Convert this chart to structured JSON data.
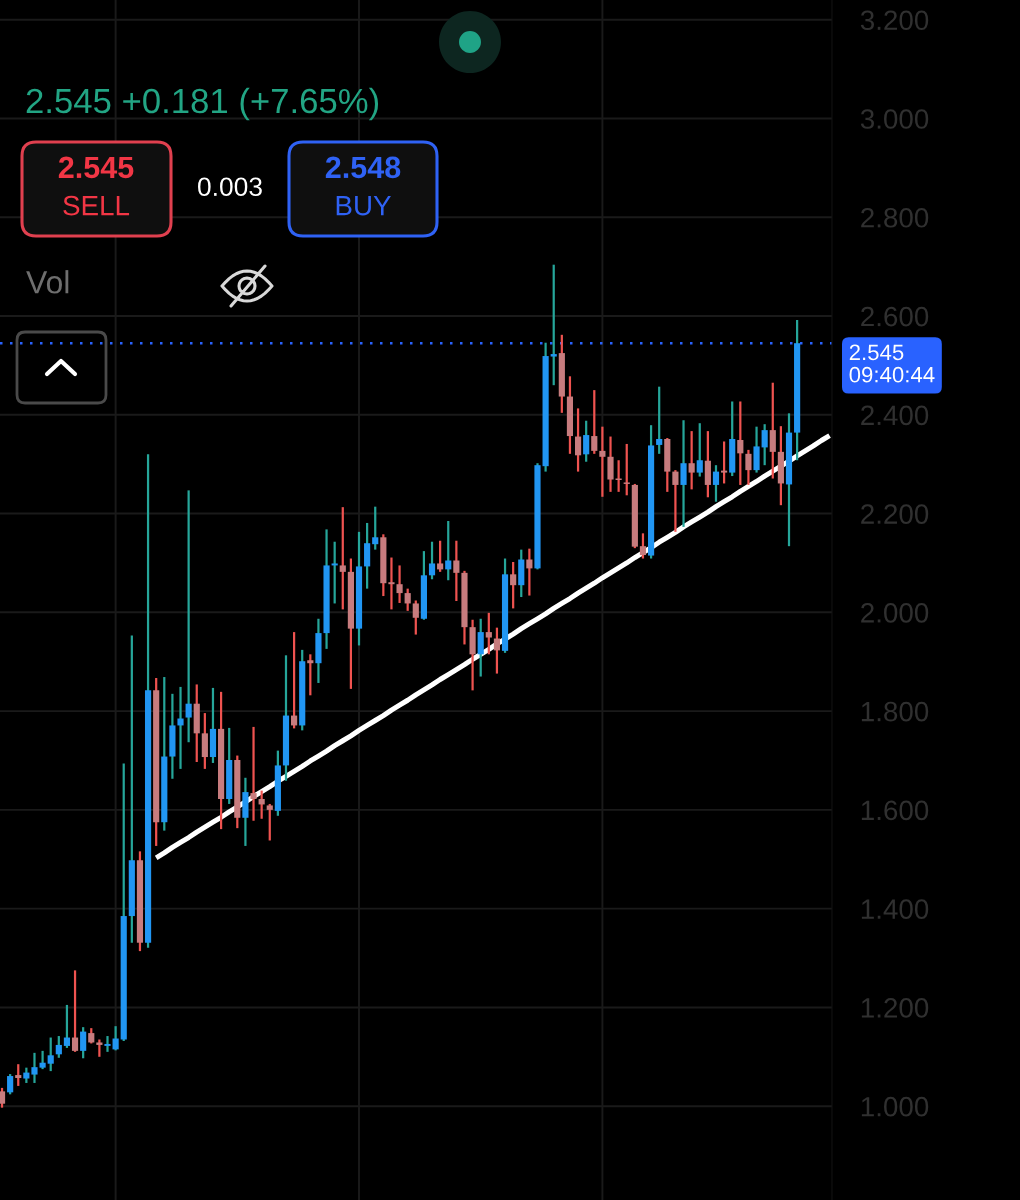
{
  "chart_data": {
    "type": "candlestick",
    "categories": [
      null,
      null,
      null,
      null,
      null,
      null,
      null,
      null,
      null,
      null,
      null,
      null,
      null,
      null,
      null,
      null,
      null,
      null,
      null,
      null,
      null,
      null,
      null,
      null,
      null,
      null,
      null,
      null,
      null,
      null,
      null,
      null,
      null,
      null,
      null,
      null,
      null,
      null,
      null,
      null,
      null,
      null,
      null,
      null,
      null,
      null,
      null,
      null,
      null,
      null,
      null,
      null,
      null,
      null,
      null,
      null,
      null,
      null,
      null,
      null,
      null,
      null,
      null,
      null,
      null,
      null,
      null,
      null,
      null,
      null,
      null,
      null,
      null,
      null,
      null,
      null,
      null,
      null,
      null,
      null,
      null,
      null,
      null,
      null,
      null,
      null,
      null,
      null,
      null,
      null,
      null,
      null,
      null,
      null,
      null,
      null,
      null,
      null,
      null,
      null,
      null,
      null,
      null
    ],
    "ohlc": [
      [
        1.03,
        1.037,
        0.997,
        1.005
      ],
      [
        1.028,
        1.065,
        1.024,
        1.061
      ],
      [
        1.063,
        1.085,
        1.041,
        1.057
      ],
      [
        1.056,
        1.078,
        1.047,
        1.068
      ],
      [
        1.064,
        1.108,
        1.047,
        1.079
      ],
      [
        1.078,
        1.112,
        1.075,
        1.088
      ],
      [
        1.086,
        1.139,
        1.071,
        1.103
      ],
      [
        1.105,
        1.142,
        1.098,
        1.124
      ],
      [
        1.122,
        1.205,
        1.118,
        1.139
      ],
      [
        1.139,
        1.275,
        1.11,
        1.112
      ],
      [
        1.112,
        1.16,
        1.097,
        1.151
      ],
      [
        1.148,
        1.158,
        1.127,
        1.129
      ],
      [
        1.129,
        1.135,
        1.1,
        1.124
      ],
      [
        1.122,
        1.142,
        1.11,
        1.126
      ],
      [
        1.115,
        1.162,
        1.113,
        1.137
      ],
      [
        1.135,
        1.694,
        1.132,
        1.385
      ],
      [
        1.385,
        1.953,
        1.331,
        1.498
      ],
      [
        1.498,
        1.516,
        1.314,
        1.331
      ],
      [
        1.331,
        2.32,
        1.321,
        1.842
      ],
      [
        1.842,
        1.867,
        1.527,
        1.575
      ],
      [
        1.575,
        1.869,
        1.558,
        1.708
      ],
      [
        1.708,
        1.835,
        1.663,
        1.771
      ],
      [
        1.771,
        1.849,
        1.683,
        1.785
      ],
      [
        1.787,
        2.247,
        1.737,
        1.815
      ],
      [
        1.815,
        1.854,
        1.697,
        1.755
      ],
      [
        1.755,
        1.796,
        1.683,
        1.707
      ],
      [
        1.707,
        1.847,
        1.695,
        1.764
      ],
      [
        1.764,
        1.839,
        1.561,
        1.622
      ],
      [
        1.622,
        1.766,
        1.612,
        1.701
      ],
      [
        1.701,
        1.71,
        1.563,
        1.584
      ],
      [
        1.584,
        1.665,
        1.527,
        1.636
      ],
      [
        1.634,
        1.768,
        1.578,
        1.622
      ],
      [
        1.622,
        1.639,
        1.582,
        1.611
      ],
      [
        1.609,
        1.612,
        1.538,
        1.6
      ],
      [
        1.598,
        1.72,
        1.588,
        1.69
      ],
      [
        1.69,
        1.913,
        1.659,
        1.791
      ],
      [
        1.791,
        1.96,
        1.765,
        1.771
      ],
      [
        1.771,
        1.924,
        1.761,
        1.901
      ],
      [
        1.903,
        1.915,
        1.832,
        1.897
      ],
      [
        1.897,
        1.987,
        1.857,
        1.958
      ],
      [
        1.958,
        2.168,
        1.926,
        2.095
      ],
      [
        2.095,
        2.143,
        2.018,
        2.099
      ],
      [
        2.095,
        2.213,
        2.006,
        2.082
      ],
      [
        2.082,
        2.109,
        1.845,
        1.967
      ],
      [
        1.967,
        2.163,
        1.933,
        2.093
      ],
      [
        2.093,
        2.181,
        2.048,
        2.14
      ],
      [
        2.138,
        2.214,
        2.127,
        2.152
      ],
      [
        2.152,
        2.158,
        2.033,
        2.059
      ],
      [
        2.061,
        2.111,
        2.006,
        2.057
      ],
      [
        2.057,
        2.095,
        2.019,
        2.039
      ],
      [
        2.039,
        2.048,
        2.003,
        2.018
      ],
      [
        2.018,
        2.024,
        1.955,
        1.989
      ],
      [
        1.987,
        2.124,
        1.985,
        2.075
      ],
      [
        2.075,
        2.143,
        2.067,
        2.099
      ],
      [
        2.099,
        2.145,
        2.082,
        2.087
      ],
      [
        2.087,
        2.185,
        2.065,
        2.105
      ],
      [
        2.105,
        2.145,
        2.023,
        2.08
      ],
      [
        2.08,
        2.084,
        1.935,
        1.97
      ],
      [
        1.97,
        1.985,
        1.842,
        1.915
      ],
      [
        1.915,
        1.987,
        1.87,
        1.96
      ],
      [
        1.96,
        1.999,
        1.915,
        1.949
      ],
      [
        1.947,
        1.969,
        1.876,
        1.923
      ],
      [
        1.922,
        2.109,
        1.918,
        2.077
      ],
      [
        2.077,
        2.102,
        2.008,
        2.055
      ],
      [
        2.055,
        2.127,
        2.031,
        2.107
      ],
      [
        2.107,
        2.129,
        2.034,
        2.089
      ],
      [
        2.089,
        2.302,
        2.087,
        2.298
      ],
      [
        2.296,
        2.546,
        2.285,
        2.519
      ],
      [
        2.518,
        2.704,
        2.46,
        2.523
      ],
      [
        2.525,
        2.562,
        2.404,
        2.437
      ],
      [
        2.437,
        2.478,
        2.321,
        2.357
      ],
      [
        2.356,
        2.413,
        2.285,
        2.318
      ],
      [
        2.32,
        2.388,
        2.305,
        2.359
      ],
      [
        2.357,
        2.45,
        2.321,
        2.327
      ],
      [
        2.327,
        2.376,
        2.234,
        2.315
      ],
      [
        2.315,
        2.356,
        2.244,
        2.269
      ],
      [
        2.271,
        2.308,
        2.244,
        2.268
      ],
      [
        2.263,
        2.341,
        2.237,
        2.26
      ],
      [
        2.258,
        2.26,
        2.13,
        2.133
      ],
      [
        2.134,
        2.16,
        2.109,
        2.116
      ],
      [
        2.115,
        2.379,
        2.109,
        2.338
      ],
      [
        2.339,
        2.457,
        2.321,
        2.351
      ],
      [
        2.351,
        2.353,
        2.244,
        2.285
      ],
      [
        2.285,
        2.288,
        2.163,
        2.258
      ],
      [
        2.258,
        2.389,
        2.173,
        2.302
      ],
      [
        2.302,
        2.367,
        2.249,
        2.283
      ],
      [
        2.283,
        2.383,
        2.275,
        2.308
      ],
      [
        2.307,
        2.367,
        2.233,
        2.258
      ],
      [
        2.258,
        2.298,
        2.224,
        2.285
      ],
      [
        2.287,
        2.346,
        2.261,
        2.283
      ],
      [
        2.283,
        2.427,
        2.276,
        2.351
      ],
      [
        2.349,
        2.427,
        2.258,
        2.322
      ],
      [
        2.321,
        2.329,
        2.258,
        2.288
      ],
      [
        2.288,
        2.376,
        2.283,
        2.336
      ],
      [
        2.334,
        2.381,
        2.298,
        2.369
      ],
      [
        2.369,
        2.465,
        2.271,
        2.325
      ],
      [
        2.325,
        2.377,
        2.217,
        2.261
      ],
      [
        2.259,
        2.403,
        2.134,
        2.364
      ],
      [
        2.364,
        2.592,
        2.308,
        2.545
      ],
      null,
      null,
      null,
      null
    ],
    "colors": [
      "#c77c7e",
      "#2196f3",
      "#c77c7e",
      "#2196f3",
      "#2196f3",
      "#2196f3",
      "#2196f3",
      "#2196f3",
      "#2196f3",
      "#c77c7e",
      "#2196f3",
      "#c77c7e",
      "#c77c7e",
      "#2196f3",
      "#2196f3",
      "#2196f3",
      "#2196f3",
      "#c77c7e",
      "#2196f3",
      "#c77c7e",
      "#2196f3",
      "#2196f3",
      "#2196f3",
      "#2196f3",
      "#c77c7e",
      "#c77c7e",
      "#2196f3",
      "#c77c7e",
      "#2196f3",
      "#c77c7e",
      "#2196f3",
      "#c77c7e",
      "#c77c7e",
      "#c77c7e",
      "#2196f3",
      "#2196f3",
      "#c77c7e",
      "#2196f3",
      "#c77c7e",
      "#2196f3",
      "#2196f3",
      "#2196f3",
      "#c77c7e",
      "#c77c7e",
      "#2196f3",
      "#2196f3",
      "#2196f3",
      "#c77c7e",
      "#c77c7e",
      "#c77c7e",
      "#c77c7e",
      "#c77c7e",
      "#2196f3",
      "#2196f3",
      "#c77c7e",
      "#2196f3",
      "#c77c7e",
      "#c77c7e",
      "#c77c7e",
      "#2196f3",
      "#c77c7e",
      "#c77c7e",
      "#2196f3",
      "#c77c7e",
      "#2196f3",
      "#c77c7e",
      "#2196f3",
      "#2196f3",
      "#2196f3",
      "#c77c7e",
      "#c77c7e",
      "#c77c7e",
      "#2196f3",
      "#c77c7e",
      "#c77c7e",
      "#c77c7e",
      "#c77c7e",
      "#c77c7e",
      "#c77c7e",
      "#c77c7e",
      "#2196f3",
      "#2196f3",
      "#c77c7e",
      "#c77c7e",
      "#2196f3",
      "#c77c7e",
      "#2196f3",
      "#c77c7e",
      "#2196f3",
      "#c77c7e",
      "#2196f3",
      "#c77c7e",
      "#c77c7e",
      "#2196f3",
      "#2196f3",
      "#c77c7e",
      "#c77c7e",
      "#2196f3",
      "#2196f3",
      null,
      null,
      null,
      null
    ],
    "series": [
      {
        "type": "line",
        "color": "#ffffff",
        "values": [
          null,
          null,
          null,
          null,
          null,
          null,
          null,
          null,
          null,
          null,
          null,
          null,
          null,
          null,
          null,
          null,
          null,
          null,
          null,
          1.503,
          1.513,
          1.524,
          1.534,
          1.544,
          1.555,
          1.565,
          1.575,
          1.585,
          1.596,
          1.606,
          1.616,
          1.627,
          1.637,
          1.647,
          1.658,
          1.668,
          1.678,
          1.688,
          1.699,
          1.709,
          1.719,
          1.73,
          1.74,
          1.75,
          1.761,
          1.771,
          1.781,
          1.791,
          1.802,
          1.812,
          1.822,
          1.833,
          1.843,
          1.853,
          1.864,
          1.874,
          1.884,
          1.894,
          1.905,
          1.915,
          1.925,
          1.936,
          1.946,
          1.956,
          1.967,
          1.977,
          1.987,
          1.997,
          2.008,
          2.018,
          2.028,
          2.039,
          2.049,
          2.059,
          2.07,
          2.08,
          2.09,
          2.1,
          2.111,
          2.121,
          2.131,
          2.142,
          2.152,
          2.162,
          2.173,
          2.183,
          2.193,
          2.203,
          2.214,
          2.224,
          2.234,
          2.245,
          2.255,
          2.265,
          2.276,
          2.286,
          2.296,
          2.306,
          2.317,
          2.327,
          2.337,
          2.348,
          2.358
        ]
      }
    ],
    "ylim": [
      0.81,
      3.24
    ],
    "yticks": [
      {
        "value": 1,
        "label": "1.000"
      },
      {
        "value": 1.2,
        "label": "1.200"
      },
      {
        "value": 1.4,
        "label": "1.400"
      },
      {
        "value": 1.6,
        "label": "1.600"
      },
      {
        "value": 1.8,
        "label": "1.800"
      },
      {
        "value": 2,
        "label": "2.000"
      },
      {
        "value": 2.2,
        "label": "2.200"
      },
      {
        "value": 2.4,
        "label": "2.400"
      },
      {
        "value": 2.6,
        "label": "2.600"
      },
      {
        "value": 2.8,
        "label": "2.800"
      },
      {
        "value": 3,
        "label": "3.000"
      },
      {
        "value": 3.2,
        "label": "3.200"
      }
    ],
    "grid": true,
    "tick_labels": "y",
    "ref_lines": [
      {
        "axis": "y",
        "value": 2.545,
        "label": "2.545\n09:40:44",
        "color": "#2962ff",
        "line_style": "dotted"
      }
    ],
    "annotations": [
      "2.545 +0.181 (+7.65%)",
      "2.545",
      "SELL",
      "0.003",
      "2.548",
      "BUY",
      "Vol"
    ]
  }
}
